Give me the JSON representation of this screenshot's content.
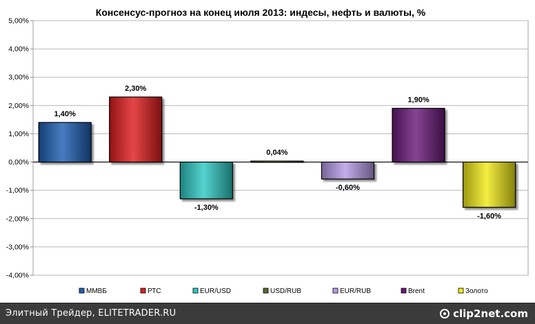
{
  "chart_data": {
    "type": "bar",
    "title": "Консенсус-прогноз на конец июля 2013: индесы, нефть и валюты, %",
    "categories": [
      "ММВБ",
      "РТС",
      "EUR/USD",
      "USD/RUB",
      "EUR/RUB",
      "Brent",
      "Золото"
    ],
    "values": [
      1.4,
      2.3,
      -1.3,
      0.04,
      -0.6,
      1.9,
      -1.6
    ],
    "data_labels": [
      "1,40%",
      "2,30%",
      "-1,30%",
      "0,04%",
      "-0,60%",
      "1,90%",
      "-1,60%"
    ],
    "colors": [
      "#1f5fb4",
      "#e11d1d",
      "#2fc9c4",
      "#556b2f",
      "#b79ce8",
      "#6a1b7a",
      "#f2ea18"
    ],
    "ylim": [
      -4,
      5
    ],
    "yticks": [
      5,
      4,
      3,
      2,
      1,
      0,
      -1,
      -2,
      -3,
      -4
    ],
    "ytick_labels": [
      "5,00%",
      "4,00%",
      "3,00%",
      "2,00%",
      "1,00%",
      "0,00%",
      "-1,00%",
      "-2,00%",
      "-3,00%",
      "-4,00%"
    ],
    "grid": true,
    "legend_position": "bottom",
    "xlabel": "",
    "ylabel": ""
  },
  "footer": {
    "caption": "Элитный Трейдер, ELITETRADER.RU",
    "watermark": "clip2net.com"
  }
}
